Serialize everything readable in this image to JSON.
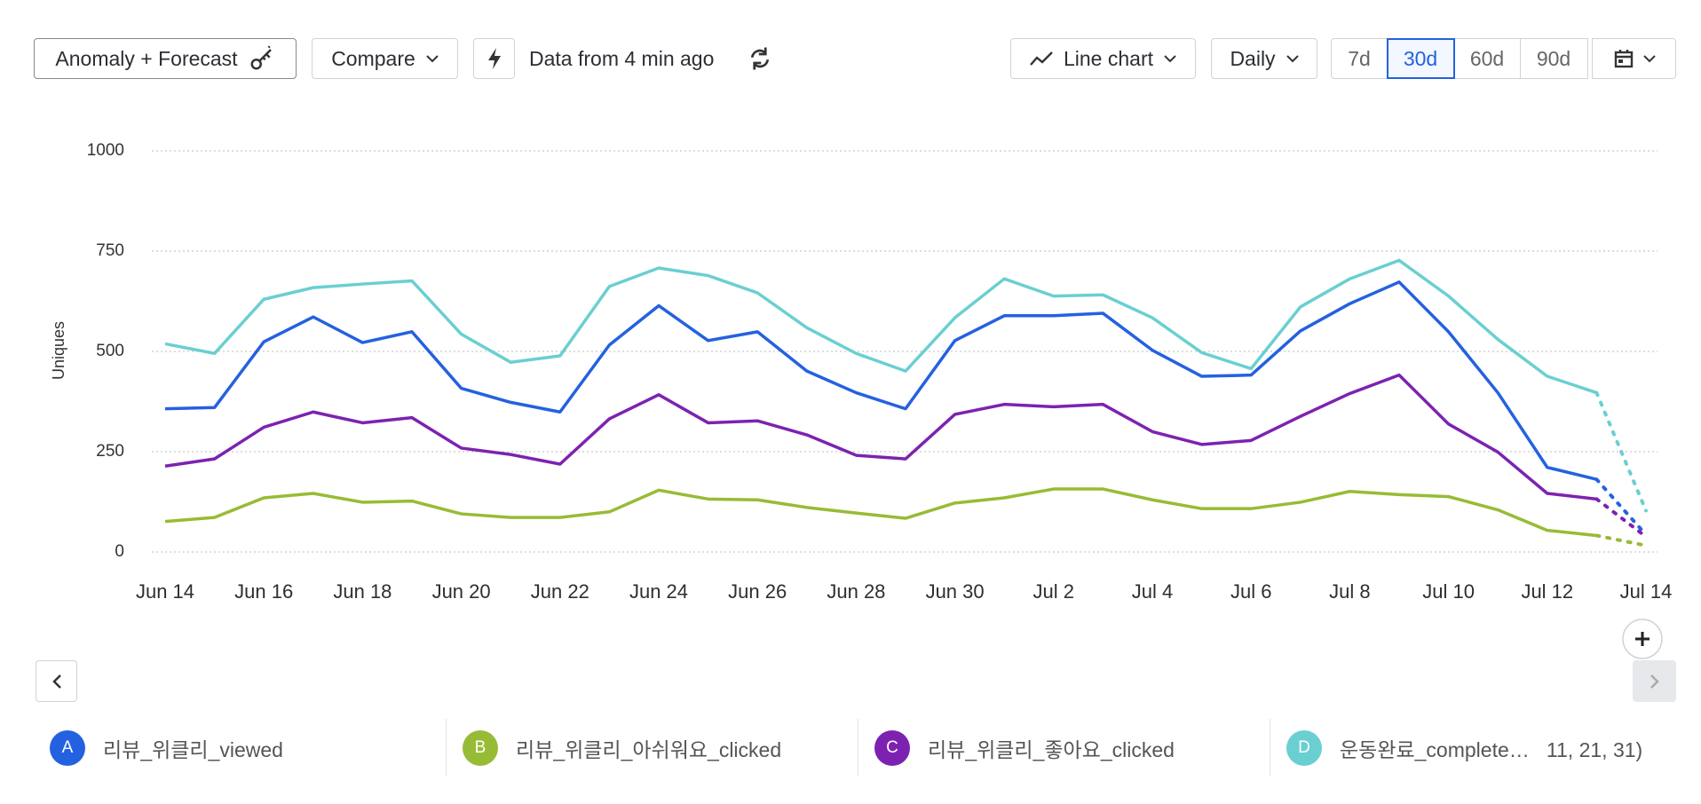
{
  "toolbar": {
    "anomaly_button": "Anomaly + Forecast",
    "compare_button": "Compare",
    "freshness": "Data from 4 min ago",
    "chart_type_button": "Line chart",
    "interval_button": "Daily",
    "ranges": [
      "7d",
      "30d",
      "60d",
      "90d"
    ],
    "selected_range": "30d"
  },
  "chart_data": {
    "type": "line",
    "y_label": "Uniques",
    "categories": [
      "Jun 14",
      null,
      "Jun 16",
      null,
      "Jun 18",
      null,
      "Jun 20",
      null,
      "Jun 22",
      null,
      "Jun 24",
      null,
      "Jun 26",
      null,
      "Jun 28",
      null,
      "Jun 30",
      null,
      "Jul 2",
      null,
      "Jul 4",
      null,
      "Jul 6",
      null,
      "Jul 8",
      null,
      "Jul 10",
      null,
      "Jul 12",
      null,
      "Jul 14"
    ],
    "ylim": [
      0,
      1000
    ],
    "yticks": [
      0,
      250,
      500,
      750,
      1000
    ],
    "grid": true,
    "series": [
      {
        "letter": "A",
        "name": "리뷰_위클리_viewed",
        "color": "#2461e0",
        "values": [
          357,
          360,
          524,
          586,
          522,
          549,
          408,
          373,
          349,
          516,
          614,
          527,
          549,
          451,
          397,
          357,
          527,
          589,
          589,
          595,
          503,
          438,
          441,
          551,
          619,
          673,
          549,
          397,
          211,
          181,
          43
        ]
      },
      {
        "letter": "B",
        "name": "리뷰_위클리_아쉬워요_clicked",
        "color": "#98bb35",
        "values": [
          76,
          86,
          135,
          146,
          124,
          127,
          95,
          86,
          86,
          100,
          154,
          132,
          130,
          111,
          97,
          84,
          122,
          135,
          157,
          157,
          130,
          108,
          108,
          124,
          151,
          143,
          138,
          105,
          54,
          41,
          16
        ]
      },
      {
        "letter": "C",
        "name": "리뷰_위클리_좋아요_clicked",
        "color": "#7d22b0",
        "values": [
          214,
          232,
          311,
          349,
          322,
          335,
          259,
          243,
          219,
          332,
          392,
          322,
          327,
          292,
          241,
          232,
          343,
          368,
          362,
          368,
          300,
          268,
          278,
          338,
          395,
          441,
          319,
          249,
          146,
          132,
          38
        ]
      },
      {
        "letter": "D",
        "name": "운동완료_complete…   11, 21, 31)",
        "color": "#6acfd1",
        "values": [
          519,
          495,
          630,
          659,
          668,
          676,
          543,
          473,
          489,
          662,
          708,
          689,
          646,
          559,
          495,
          451,
          584,
          681,
          638,
          641,
          584,
          497,
          457,
          611,
          681,
          727,
          638,
          530,
          438,
          397,
          103
        ]
      }
    ]
  }
}
